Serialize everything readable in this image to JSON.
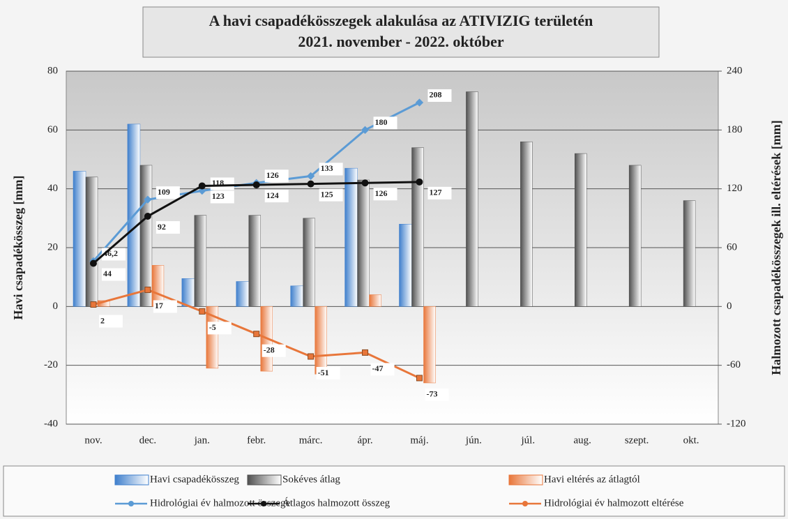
{
  "chart_data": {
    "type": "bar",
    "title": "A havi csapadékösszegek alakulása az ATIVIZIG területén",
    "subtitle": "2021. november - 2022. október",
    "ylabel": "Havi csapadékösszeg [mm]",
    "y2label": "Halmozott csapadékösszegek ill. eltérések [mm]",
    "categories": [
      "nov.",
      "dec.",
      "jan.",
      "febr.",
      "márc.",
      "ápr.",
      "máj.",
      "jún.",
      "júl.",
      "aug.",
      "szept.",
      "okt."
    ],
    "ylim": [
      -40,
      80
    ],
    "yticks": [
      -40,
      -20,
      0,
      20,
      40,
      60,
      80
    ],
    "y2lim": [
      -120,
      240
    ],
    "y2ticks": [
      -120,
      -60,
      0,
      60,
      120,
      180,
      240
    ],
    "grid": true,
    "series": [
      {
        "name": "Havi csapadékösszeg",
        "type": "bar",
        "color": "#3f7fcc",
        "values": [
          46,
          62,
          9.5,
          8.5,
          7,
          47,
          28,
          null,
          null,
          null,
          null,
          null
        ]
      },
      {
        "name": "Sokéves átlag",
        "type": "bar",
        "color": "#505050",
        "values": [
          44,
          48,
          31,
          31,
          30,
          43,
          54,
          73,
          56,
          52,
          48,
          36
        ]
      },
      {
        "name": "Havi eltérés az átlagtól",
        "type": "bar",
        "color": "#e8763a",
        "values": [
          2,
          14,
          -21,
          -22,
          -23,
          4,
          -26,
          null,
          null,
          null,
          null,
          null
        ]
      },
      {
        "name": "Hidrológiai év halmozott összege",
        "type": "line",
        "axis": "y2",
        "color": "#5b9bd5",
        "values": [
          46.2,
          109,
          118,
          126,
          133,
          180,
          208,
          null,
          null,
          null,
          null,
          null
        ],
        "value_labels": [
          "46,2",
          "109",
          "118",
          "126",
          "133",
          "180",
          "208",
          null,
          null,
          null,
          null,
          null
        ]
      },
      {
        "name": "Átlagos halmozott összeg",
        "type": "line",
        "axis": "y2",
        "color": "#111111",
        "values": [
          44,
          92,
          123,
          124,
          125,
          126,
          127,
          null,
          null,
          null,
          null,
          null
        ]
      },
      {
        "name": "Hidrológiai év halmozott eltérése",
        "type": "line",
        "axis": "y2",
        "color": "#e8763a",
        "values": [
          2,
          17,
          -5,
          -28,
          -51,
          -47,
          -73,
          null,
          null,
          null,
          null,
          null
        ]
      }
    ]
  }
}
